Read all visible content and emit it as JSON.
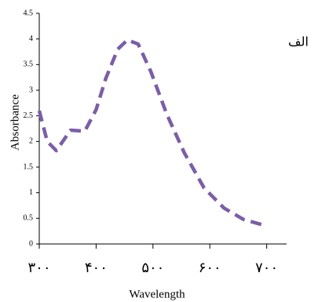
{
  "chart_data": {
    "type": "line",
    "x_label": "Wavelength",
    "y_label": "Absorbance",
    "annotation": "الف",
    "series": [
      {
        "color": "#7b5ea7",
        "x": [
          300,
          314,
          330,
          355,
          380,
          400,
          417,
          438,
          455,
          474,
          496,
          524,
          555,
          590,
          625,
          659,
          700
        ],
        "values": [
          2.6,
          2.0,
          1.82,
          2.22,
          2.2,
          2.62,
          3.23,
          3.8,
          3.98,
          3.9,
          3.37,
          2.54,
          1.78,
          1.09,
          0.7,
          0.48,
          0.35
        ]
      }
    ],
    "xlim": [
      300,
      735
    ],
    "ylim": [
      0,
      4.5
    ],
    "xticks": [
      {
        "value": 300,
        "label": "۳۰۰"
      },
      {
        "value": 400,
        "label": "۴۰۰"
      },
      {
        "value": 500,
        "label": "۵۰۰"
      },
      {
        "value": 600,
        "label": "۶۰۰"
      },
      {
        "value": 700,
        "label": "۷۰۰"
      }
    ],
    "yticks": [
      0,
      0.5,
      1,
      1.5,
      2,
      2.5,
      3,
      3.5,
      4,
      4.5
    ]
  }
}
